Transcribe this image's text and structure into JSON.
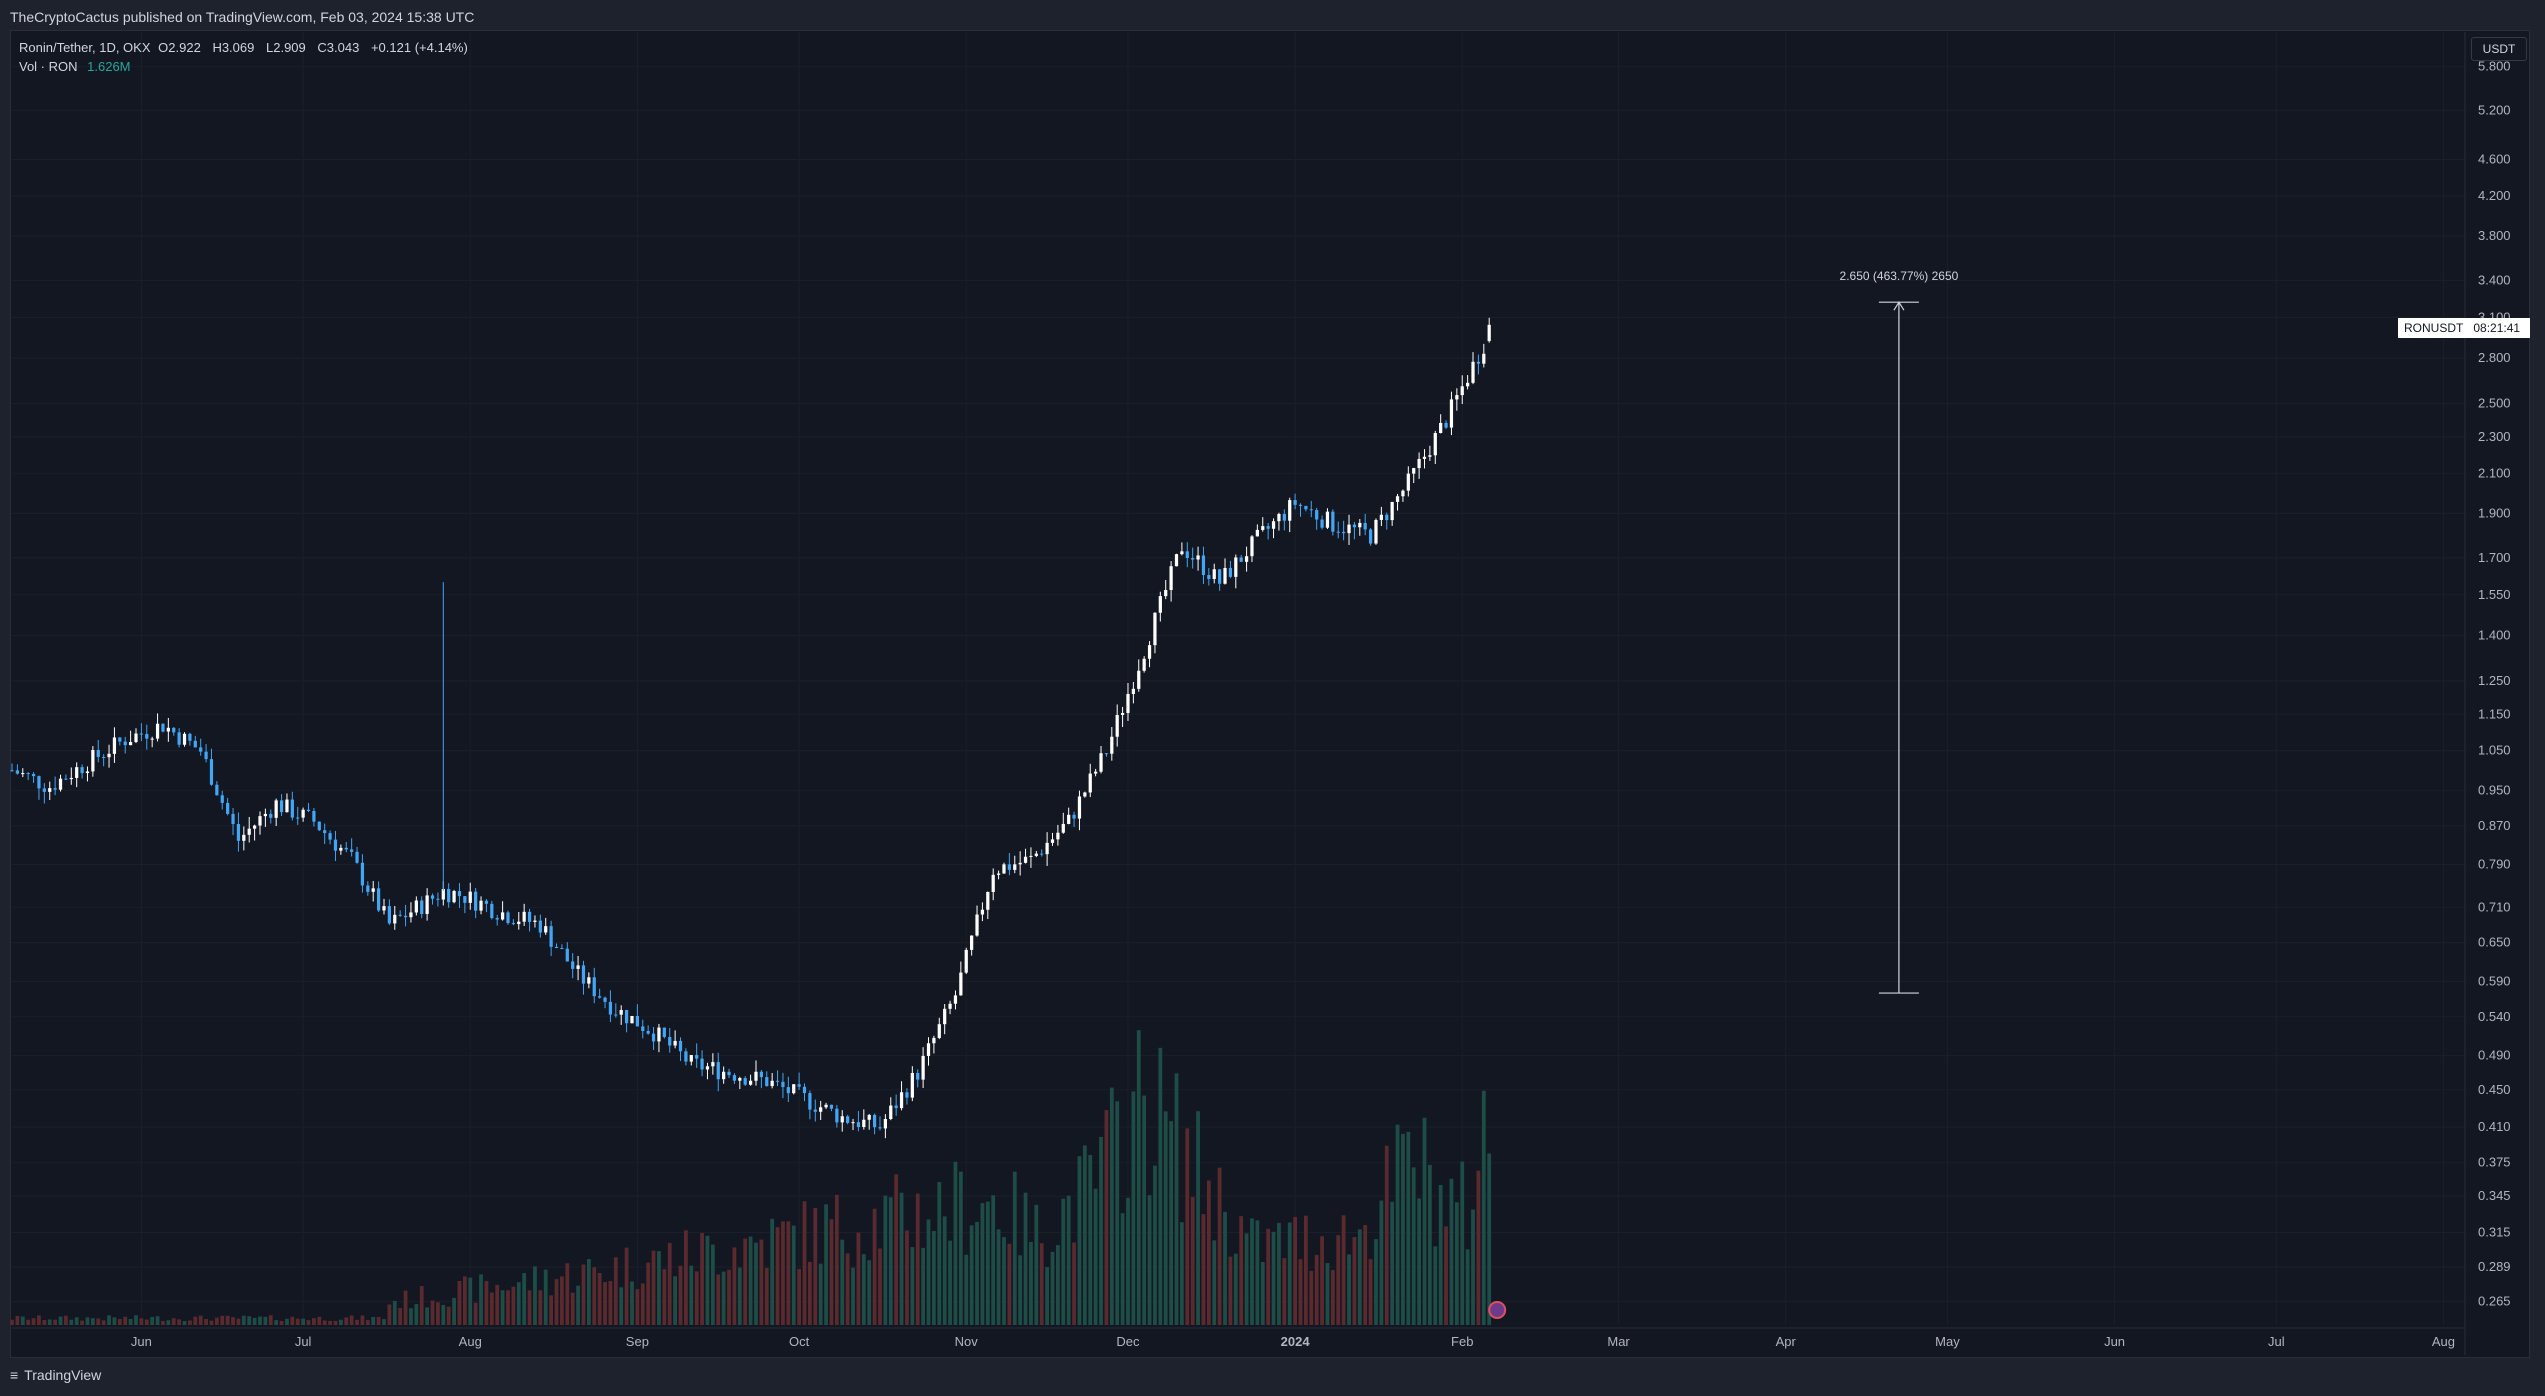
{
  "header": {
    "published": "TheCryptoCactus published on TradingView.com, Feb 03, 2024 15:38 UTC"
  },
  "legend": {
    "symbol": "Ronin/Tether, 1D, OKX",
    "open_label": "O",
    "open_value": "2.922",
    "high_label": "H",
    "high_value": "3.069",
    "low_label": "L",
    "low_value": "2.909",
    "close_label": "C",
    "close_value": "3.043",
    "change": "+0.121 (+4.14%)",
    "vol_label": "Vol · RON",
    "vol_value": "1.626M"
  },
  "price_axis": {
    "currency": "USDT",
    "ticks": [
      "5.800",
      "5.200",
      "4.600",
      "4.200",
      "3.800",
      "3.400",
      "3.100",
      "2.800",
      "2.500",
      "2.300",
      "2.100",
      "1.900",
      "1.700",
      "1.550",
      "1.400",
      "1.250",
      "1.150",
      "1.050",
      "0.950",
      "0.870",
      "0.790",
      "0.710",
      "0.650",
      "0.590",
      "0.540",
      "0.490",
      "0.450",
      "0.410",
      "0.375",
      "0.345",
      "0.315",
      "0.289",
      "0.265"
    ]
  },
  "time_axis": {
    "ticks": [
      "Jun",
      "Jul",
      "Aug",
      "Sep",
      "Oct",
      "Nov",
      "Dec",
      "2024",
      "Feb",
      "Mar",
      "Apr",
      "May",
      "Jun",
      "Jul",
      "Aug"
    ]
  },
  "current_price_tag": {
    "symbol": "RONUSDT",
    "countdown": "08:21:41"
  },
  "measure": {
    "label": "2.650 (463.77%) 2650"
  },
  "footer": {
    "brand": "TradingView"
  },
  "colors": {
    "background": "#131722",
    "up": "#ffffff",
    "down": "#42a5f5",
    "vol_up": "#1e4d47",
    "vol_down": "#5a2a2e",
    "grid": "#1b1f2b"
  },
  "chart_data": {
    "type": "candlestick",
    "scale": "log",
    "ylim": [
      0.25,
      6.2
    ],
    "x_domain_days": [
      0,
      455
    ],
    "start_label": "2023-05-08",
    "daily": {
      "x_day": [
        0,
        7,
        14,
        21,
        28,
        35,
        42,
        49,
        56,
        63,
        70,
        77,
        80,
        84,
        91,
        98,
        105,
        112,
        119,
        126,
        133,
        140,
        147,
        154,
        161,
        168,
        175,
        182,
        189,
        196,
        203,
        210,
        217,
        224,
        231,
        238,
        245,
        252,
        259,
        266,
        273,
        274
      ],
      "close": [
        1.0,
        0.96,
        1.02,
        1.08,
        1.12,
        1.05,
        0.84,
        0.92,
        0.88,
        0.8,
        0.68,
        0.72,
        0.74,
        0.73,
        0.7,
        0.68,
        0.6,
        0.55,
        0.52,
        0.48,
        0.47,
        0.46,
        0.44,
        0.42,
        0.41,
        0.47,
        0.57,
        0.78,
        0.8,
        0.88,
        1.05,
        1.35,
        1.75,
        1.6,
        1.78,
        1.95,
        1.85,
        1.8,
        2.05,
        2.4,
        2.9,
        3.043
      ]
    },
    "volume_relative": {
      "x_day": [
        70,
        112,
        182,
        190,
        200,
        210,
        230,
        250,
        260,
        265,
        270,
        274
      ],
      "values": [
        0.1,
        0.25,
        0.55,
        0.4,
        0.6,
        1.0,
        0.35,
        0.4,
        0.75,
        0.55,
        0.5,
        0.95
      ]
    }
  }
}
